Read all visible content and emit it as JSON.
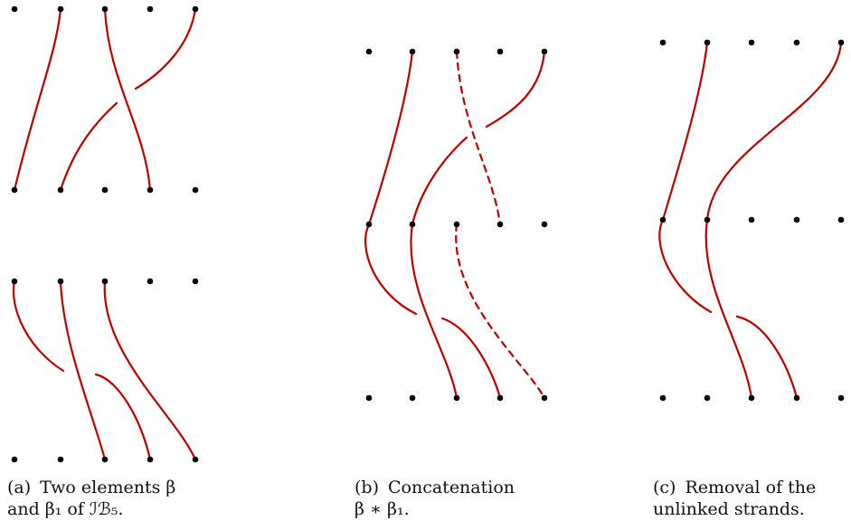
{
  "colors": {
    "strand": "#c00000",
    "dot": "#000000",
    "text": "#111111"
  },
  "captions": {
    "a": {
      "tag": "(a)",
      "line1": "Two elements β",
      "line2": "and β₁ of ℐℬ₅."
    },
    "b": {
      "tag": "(b)",
      "line1": "Concatenation",
      "line2": "β ∗ β₁."
    },
    "c": {
      "tag": "(c)",
      "line1": "Removal of the",
      "line2": "unlinked strands."
    }
  }
}
